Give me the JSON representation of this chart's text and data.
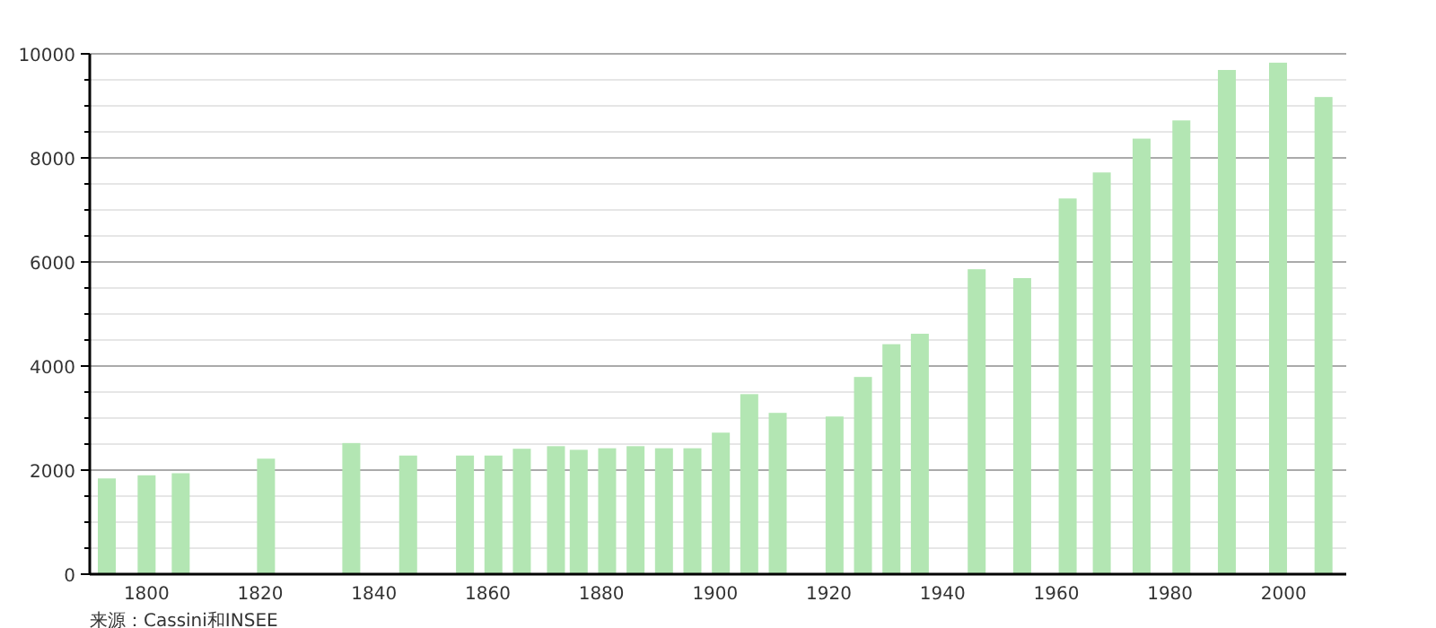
{
  "chart_data": {
    "type": "bar",
    "x": [
      1793,
      1800,
      1806,
      1821,
      1836,
      1846,
      1856,
      1861,
      1866,
      1872,
      1876,
      1881,
      1886,
      1891,
      1896,
      1901,
      1906,
      1911,
      1921,
      1926,
      1931,
      1936,
      1946,
      1954,
      1962,
      1968,
      1975,
      1982,
      1990,
      1999,
      2007
    ],
    "values": [
      1840,
      1900,
      1940,
      2220,
      2520,
      2280,
      2280,
      2280,
      2410,
      2460,
      2390,
      2420,
      2460,
      2420,
      2420,
      2720,
      3460,
      3100,
      3030,
      3790,
      4420,
      4620,
      5860,
      5690,
      7220,
      7720,
      8370,
      8720,
      9690,
      9830,
      9170
    ],
    "color": "#b3e6b3",
    "xlim": [
      1790,
      2011
    ],
    "xticks": [
      1800,
      1820,
      1840,
      1860,
      1880,
      1900,
      1920,
      1940,
      1960,
      1980,
      2000
    ],
    "ylim": [
      0,
      10000
    ],
    "yticks": [
      0,
      {
        "value": 500,
        "label": null
      },
      {
        "value": 1000,
        "label": null
      },
      {
        "value": 1500,
        "label": null
      },
      2000,
      {
        "value": 2500,
        "label": null
      },
      {
        "value": 3000,
        "label": null
      },
      {
        "value": 3500,
        "label": null
      },
      4000,
      {
        "value": 4500,
        "label": null
      },
      {
        "value": 5000,
        "label": null
      },
      {
        "value": 5500,
        "label": null
      },
      6000,
      {
        "value": 6500,
        "label": null
      },
      {
        "value": 7000,
        "label": null
      },
      {
        "value": 7500,
        "label": null
      },
      8000,
      {
        "value": 8500,
        "label": null
      },
      {
        "value": 9000,
        "label": null
      },
      {
        "value": 9500,
        "label": null
      },
      10000
    ],
    "grid": "y",
    "annotations": [
      "来源：Cassini和INSEE"
    ]
  }
}
